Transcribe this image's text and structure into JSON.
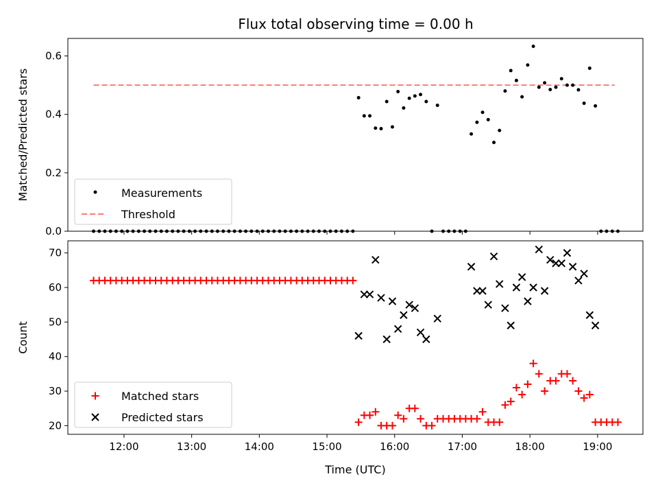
{
  "chart_data": [
    {
      "type": "scatter",
      "title": "Flux total observing time = 0.00 h",
      "xlabel": "",
      "ylabel": "Matched/Predicted stars",
      "xlim": [
        11.17,
        19.67
      ],
      "ylim": [
        0,
        0.66
      ],
      "yticks": [
        0.0,
        0.2,
        0.4,
        0.6
      ],
      "ytick_labels": [
        "0.0",
        "0.2",
        "0.4",
        "0.6"
      ],
      "legend": [
        "Measurements",
        "Threshold"
      ],
      "legend_position": "lower-left",
      "threshold": {
        "name": "Threshold",
        "value": 0.5,
        "x_range": [
          11.55,
          19.25
        ],
        "color": "#ff7777"
      },
      "series": [
        {
          "name": "Measurements",
          "color": "#000000",
          "x": [
            11.55,
            11.633,
            11.717,
            11.8,
            11.883,
            11.967,
            12.05,
            12.133,
            12.217,
            12.3,
            12.383,
            12.467,
            12.55,
            12.633,
            12.717,
            12.8,
            12.883,
            12.967,
            13.05,
            13.133,
            13.217,
            13.3,
            13.383,
            13.467,
            13.55,
            13.633,
            13.717,
            13.8,
            13.883,
            13.967,
            14.05,
            14.133,
            14.217,
            14.3,
            14.383,
            14.467,
            14.55,
            14.633,
            14.717,
            14.8,
            14.883,
            14.967,
            15.05,
            15.133,
            15.217,
            15.3,
            15.383,
            15.467,
            15.55,
            15.633,
            15.717,
            15.8,
            15.883,
            15.967,
            16.05,
            16.133,
            16.217,
            16.3,
            16.383,
            16.467,
            16.55,
            16.633,
            16.717,
            16.8,
            16.883,
            16.967,
            17.05,
            17.133,
            17.217,
            17.3,
            17.383,
            17.467,
            17.55,
            17.633,
            17.717,
            17.8,
            17.883,
            17.967,
            18.05,
            18.133,
            18.217,
            18.3,
            18.383,
            18.467,
            18.55,
            18.633,
            18.717,
            18.8,
            18.883,
            18.967,
            19.05,
            19.133,
            19.217,
            19.3
          ],
          "y": [
            0,
            0,
            0,
            0,
            0,
            0,
            0,
            0,
            0,
            0,
            0,
            0,
            0,
            0,
            0,
            0,
            0,
            0,
            0,
            0,
            0,
            0,
            0,
            0,
            0,
            0,
            0,
            0,
            0,
            0,
            0,
            0,
            0,
            0,
            0,
            0,
            0,
            0,
            0,
            0,
            0,
            0,
            0,
            0,
            0,
            0,
            0,
            0.457,
            0.395,
            0.395,
            0.353,
            0.351,
            0.444,
            0.357,
            0.478,
            0.422,
            0.455,
            0.463,
            0.468,
            0.444,
            0,
            0.431,
            0,
            0,
            0,
            0,
            0,
            0.333,
            0.373,
            0.407,
            0.382,
            0.304,
            0.345,
            0.48,
            0.55,
            0.516,
            0.46,
            0.569,
            0.633,
            0.493,
            0.508,
            0.485,
            0.493,
            0.522,
            0.5,
            0.5,
            0.484,
            0.438,
            0.558,
            0.429,
            0,
            0,
            0,
            0
          ]
        }
      ]
    },
    {
      "type": "scatter",
      "title": "",
      "xlabel": "Time (UTC)",
      "ylabel": "Count",
      "xlim": [
        11.17,
        19.67
      ],
      "ylim": [
        17.5,
        73.5
      ],
      "yticks": [
        20,
        30,
        40,
        50,
        60,
        70
      ],
      "ytick_labels": [
        "20",
        "30",
        "40",
        "50",
        "60",
        "70"
      ],
      "xticks": [
        12,
        13,
        14,
        15,
        16,
        17,
        18,
        19
      ],
      "xtick_labels": [
        "12:00",
        "13:00",
        "14:00",
        "15:00",
        "16:00",
        "17:00",
        "18:00",
        "19:00"
      ],
      "legend": [
        "Matched stars",
        "Predicted stars"
      ],
      "legend_position": "lower-left",
      "series": [
        {
          "name": "Matched stars",
          "color": "#ff0000",
          "marker": "+",
          "x": [
            11.55,
            11.633,
            11.717,
            11.8,
            11.883,
            11.967,
            12.05,
            12.133,
            12.217,
            12.3,
            12.383,
            12.467,
            12.55,
            12.633,
            12.717,
            12.8,
            12.883,
            12.967,
            13.05,
            13.133,
            13.217,
            13.3,
            13.383,
            13.467,
            13.55,
            13.633,
            13.717,
            13.8,
            13.883,
            13.967,
            14.05,
            14.133,
            14.217,
            14.3,
            14.383,
            14.467,
            14.55,
            14.633,
            14.717,
            14.8,
            14.883,
            14.967,
            15.05,
            15.133,
            15.217,
            15.3,
            15.383,
            15.467,
            15.55,
            15.633,
            15.717,
            15.8,
            15.883,
            15.967,
            16.05,
            16.133,
            16.217,
            16.3,
            16.383,
            16.467,
            16.55,
            16.633,
            16.717,
            16.8,
            16.883,
            16.967,
            17.05,
            17.133,
            17.217,
            17.3,
            17.383,
            17.467,
            17.55,
            17.633,
            17.717,
            17.8,
            17.883,
            17.967,
            18.05,
            18.133,
            18.217,
            18.3,
            18.383,
            18.467,
            18.55,
            18.633,
            18.717,
            18.8,
            18.883,
            18.967,
            19.05,
            19.133,
            19.217,
            19.3
          ],
          "y": [
            62,
            62,
            62,
            62,
            62,
            62,
            62,
            62,
            62,
            62,
            62,
            62,
            62,
            62,
            62,
            62,
            62,
            62,
            62,
            62,
            62,
            62,
            62,
            62,
            62,
            62,
            62,
            62,
            62,
            62,
            62,
            62,
            62,
            62,
            62,
            62,
            62,
            62,
            62,
            62,
            62,
            62,
            62,
            62,
            62,
            62,
            62,
            21,
            23,
            23,
            24,
            20,
            20,
            20,
            23,
            22,
            25,
            25,
            22,
            20,
            20,
            22,
            22,
            22,
            22,
            22,
            22,
            22,
            22,
            24,
            21,
            21,
            21,
            26,
            27,
            31,
            29,
            32,
            38,
            35,
            30,
            33,
            33,
            35,
            35,
            33,
            30,
            28,
            29,
            21,
            21,
            21,
            21,
            21
          ]
        },
        {
          "name": "Predicted stars",
          "color": "#000000",
          "marker": "x",
          "x": [
            15.467,
            15.55,
            15.633,
            15.717,
            15.8,
            15.883,
            15.967,
            16.05,
            16.133,
            16.217,
            16.3,
            16.383,
            16.467,
            16.633,
            17.133,
            17.217,
            17.3,
            17.383,
            17.467,
            17.55,
            17.633,
            17.717,
            17.8,
            17.883,
            17.967,
            18.05,
            18.133,
            18.217,
            18.3,
            18.383,
            18.467,
            18.55,
            18.633,
            18.717,
            18.8,
            18.883,
            18.967
          ],
          "y": [
            46,
            58,
            58,
            68,
            57,
            45,
            56,
            48,
            52,
            55,
            54,
            47,
            45,
            51,
            66,
            59,
            59,
            55,
            69,
            61,
            54,
            49,
            60,
            63,
            56,
            60,
            71,
            59,
            68,
            67,
            67,
            70,
            66,
            62,
            64,
            52,
            49
          ]
        }
      ]
    }
  ]
}
